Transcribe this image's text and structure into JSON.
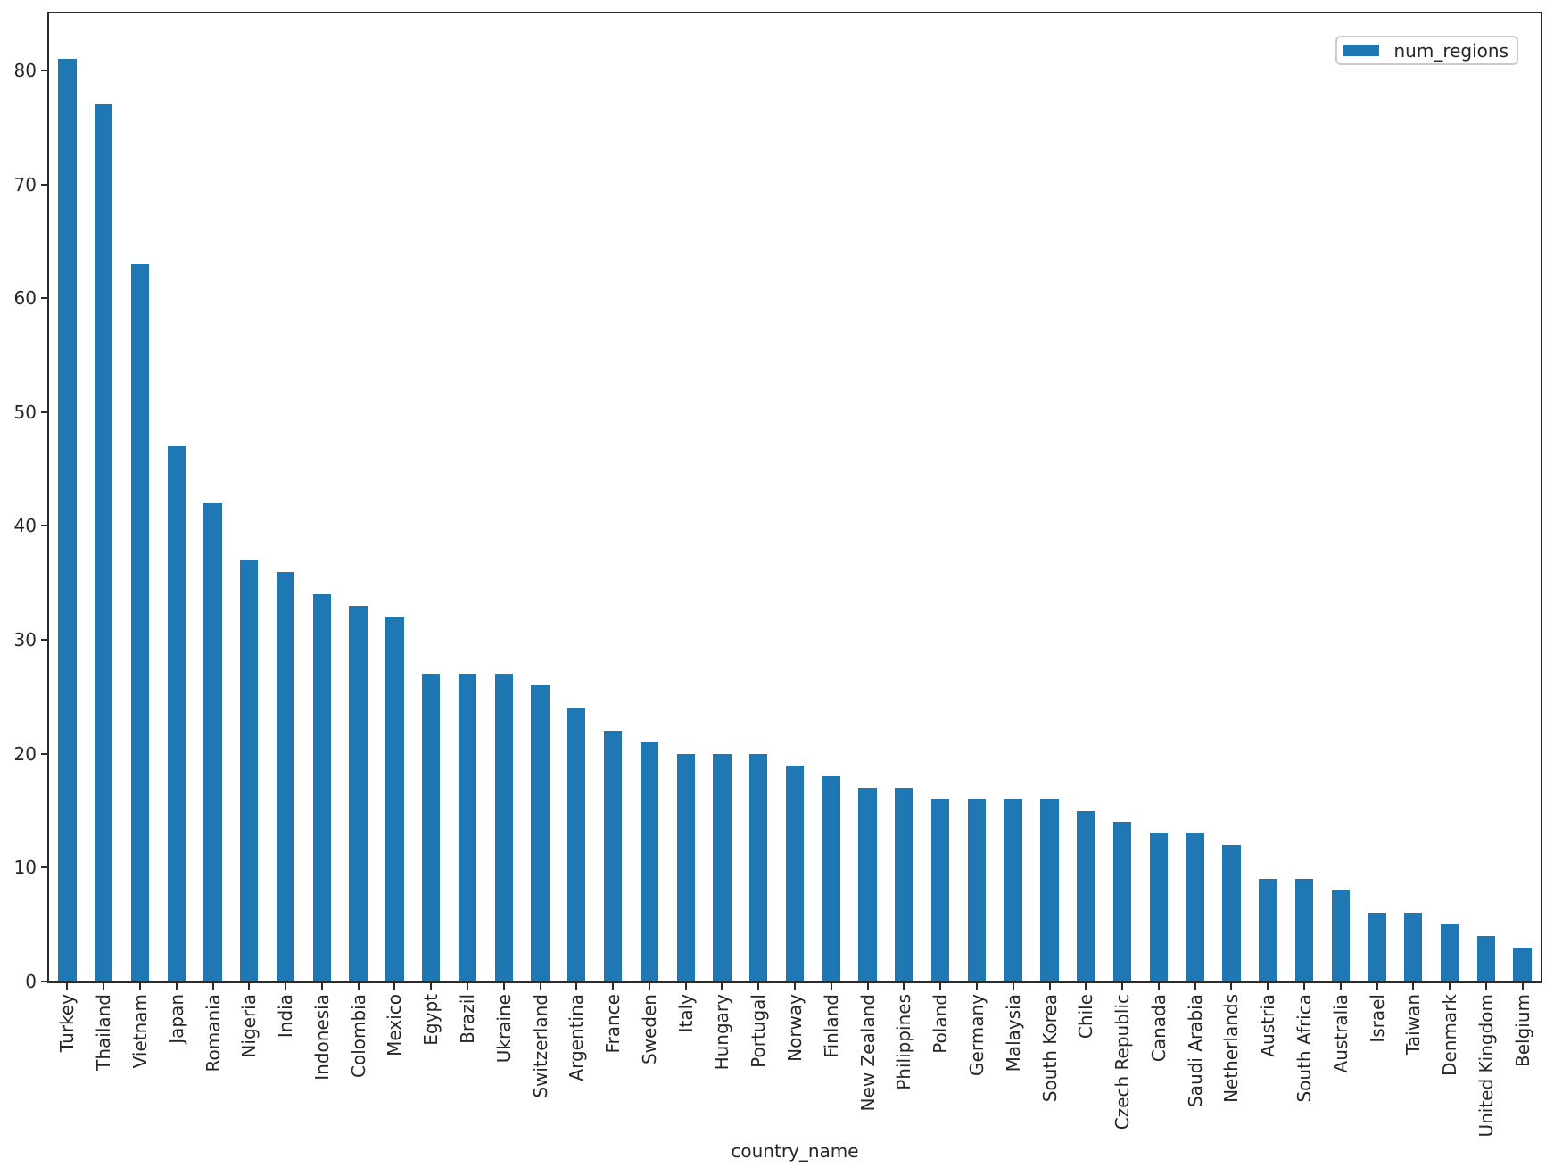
{
  "chart_data": {
    "type": "bar",
    "title": "",
    "xlabel": "country_name",
    "ylabel": "",
    "categories": [
      "Turkey",
      "Thailand",
      "Vietnam",
      "Japan",
      "Romania",
      "Nigeria",
      "India",
      "Indonesia",
      "Colombia",
      "Mexico",
      "Egypt",
      "Brazil",
      "Ukraine",
      "Switzerland",
      "Argentina",
      "France",
      "Sweden",
      "Italy",
      "Hungary",
      "Portugal",
      "Norway",
      "Finland",
      "New Zealand",
      "Philippines",
      "Poland",
      "Germany",
      "Malaysia",
      "South Korea",
      "Chile",
      "Czech Republic",
      "Canada",
      "Saudi Arabia",
      "Netherlands",
      "Austria",
      "South Africa",
      "Australia",
      "Israel",
      "Taiwan",
      "Denmark",
      "United Kingdom",
      "Belgium"
    ],
    "series": [
      {
        "name": "num_regions",
        "values": [
          81,
          77,
          63,
          47,
          42,
          37,
          36,
          34,
          33,
          32,
          27,
          27,
          27,
          26,
          24,
          22,
          21,
          20,
          20,
          20,
          19,
          18,
          17,
          17,
          16,
          16,
          16,
          16,
          15,
          14,
          13,
          13,
          12,
          9,
          9,
          8,
          6,
          6,
          5,
          4,
          3
        ]
      }
    ],
    "ylim": [
      0,
      85
    ],
    "yticks": [
      0,
      10,
      20,
      30,
      40,
      50,
      60,
      70,
      80
    ],
    "grid": false,
    "legend_position": "upper right",
    "bar_color": "#1f77b4",
    "bar_width_ratio": 0.5
  }
}
